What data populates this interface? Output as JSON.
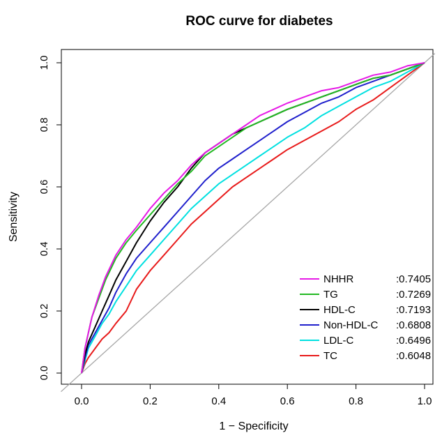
{
  "chart_data": {
    "type": "line",
    "title": "ROC curve for diabetes",
    "xlabel": "1 − Specificity",
    "ylabel": "Sensitivity",
    "xlim": [
      0,
      1
    ],
    "ylim": [
      0,
      1
    ],
    "x_ticks": [
      "0.0",
      "0.2",
      "0.4",
      "0.6",
      "0.8",
      "1.0"
    ],
    "y_ticks": [
      "0.0",
      "0.2",
      "0.4",
      "0.6",
      "0.8",
      "1.0"
    ],
    "grid": false,
    "legend_position": "bottom-right",
    "reference_line": {
      "from": [
        0,
        0
      ],
      "to": [
        1,
        1
      ],
      "color": "#a6a6a6"
    },
    "series": [
      {
        "name": "NHHR",
        "auc": ":0.7405",
        "color": "#e619e6",
        "points": [
          [
            0,
            0
          ],
          [
            0.01,
            0.08
          ],
          [
            0.02,
            0.13
          ],
          [
            0.03,
            0.18
          ],
          [
            0.05,
            0.25
          ],
          [
            0.07,
            0.31
          ],
          [
            0.1,
            0.38
          ],
          [
            0.13,
            0.43
          ],
          [
            0.16,
            0.47
          ],
          [
            0.2,
            0.53
          ],
          [
            0.24,
            0.58
          ],
          [
            0.28,
            0.62
          ],
          [
            0.32,
            0.67
          ],
          [
            0.36,
            0.71
          ],
          [
            0.4,
            0.74
          ],
          [
            0.44,
            0.77
          ],
          [
            0.48,
            0.8
          ],
          [
            0.52,
            0.83
          ],
          [
            0.56,
            0.85
          ],
          [
            0.6,
            0.87
          ],
          [
            0.65,
            0.89
          ],
          [
            0.7,
            0.91
          ],
          [
            0.75,
            0.92
          ],
          [
            0.8,
            0.94
          ],
          [
            0.85,
            0.96
          ],
          [
            0.9,
            0.97
          ],
          [
            0.95,
            0.99
          ],
          [
            1,
            1
          ]
        ]
      },
      {
        "name": "TG",
        "auc": ":0.7269",
        "color": "#22b822",
        "points": [
          [
            0,
            0
          ],
          [
            0.01,
            0.08
          ],
          [
            0.02,
            0.13
          ],
          [
            0.03,
            0.18
          ],
          [
            0.05,
            0.24
          ],
          [
            0.07,
            0.3
          ],
          [
            0.1,
            0.37
          ],
          [
            0.13,
            0.42
          ],
          [
            0.16,
            0.46
          ],
          [
            0.2,
            0.51
          ],
          [
            0.24,
            0.56
          ],
          [
            0.28,
            0.61
          ],
          [
            0.32,
            0.65
          ],
          [
            0.36,
            0.7
          ],
          [
            0.4,
            0.73
          ],
          [
            0.44,
            0.76
          ],
          [
            0.48,
            0.79
          ],
          [
            0.52,
            0.81
          ],
          [
            0.56,
            0.83
          ],
          [
            0.6,
            0.85
          ],
          [
            0.65,
            0.87
          ],
          [
            0.7,
            0.89
          ],
          [
            0.75,
            0.91
          ],
          [
            0.8,
            0.93
          ],
          [
            0.85,
            0.95
          ],
          [
            0.9,
            0.96
          ],
          [
            0.95,
            0.98
          ],
          [
            1,
            1
          ]
        ]
      },
      {
        "name": "HDL-C",
        "auc": ":0.7193",
        "color": "#000000",
        "points": [
          [
            0,
            0
          ],
          [
            0.01,
            0.06
          ],
          [
            0.02,
            0.1
          ],
          [
            0.04,
            0.15
          ],
          [
            0.06,
            0.2
          ],
          [
            0.08,
            0.25
          ],
          [
            0.1,
            0.3
          ],
          [
            0.13,
            0.36
          ],
          [
            0.16,
            0.42
          ],
          [
            0.2,
            0.49
          ],
          [
            0.24,
            0.55
          ],
          [
            0.28,
            0.6
          ],
          [
            0.32,
            0.66
          ],
          [
            0.36,
            0.71
          ],
          [
            0.4,
            0.74
          ],
          [
            0.44,
            0.77
          ],
          [
            0.48,
            0.79
          ],
          [
            0.52,
            0.81
          ],
          [
            0.56,
            0.83
          ],
          [
            0.6,
            0.85
          ],
          [
            0.65,
            0.87
          ],
          [
            0.7,
            0.89
          ],
          [
            0.75,
            0.91
          ],
          [
            0.8,
            0.93
          ],
          [
            0.85,
            0.95
          ],
          [
            0.9,
            0.96
          ],
          [
            0.95,
            0.98
          ],
          [
            1,
            1
          ]
        ]
      },
      {
        "name": "Non-HDL-C",
        "auc": ":0.6808",
        "color": "#1f1fcc",
        "points": [
          [
            0,
            0
          ],
          [
            0.01,
            0.05
          ],
          [
            0.02,
            0.09
          ],
          [
            0.04,
            0.13
          ],
          [
            0.06,
            0.17
          ],
          [
            0.08,
            0.21
          ],
          [
            0.1,
            0.26
          ],
          [
            0.13,
            0.32
          ],
          [
            0.16,
            0.37
          ],
          [
            0.2,
            0.42
          ],
          [
            0.24,
            0.47
          ],
          [
            0.28,
            0.52
          ],
          [
            0.32,
            0.57
          ],
          [
            0.36,
            0.62
          ],
          [
            0.4,
            0.66
          ],
          [
            0.44,
            0.69
          ],
          [
            0.48,
            0.72
          ],
          [
            0.52,
            0.75
          ],
          [
            0.56,
            0.78
          ],
          [
            0.6,
            0.81
          ],
          [
            0.65,
            0.84
          ],
          [
            0.7,
            0.87
          ],
          [
            0.75,
            0.89
          ],
          [
            0.8,
            0.92
          ],
          [
            0.85,
            0.94
          ],
          [
            0.9,
            0.96
          ],
          [
            0.95,
            0.98
          ],
          [
            1,
            1
          ]
        ]
      },
      {
        "name": "LDL-C",
        "auc": ":0.6496",
        "color": "#00e0e0",
        "points": [
          [
            0,
            0
          ],
          [
            0.01,
            0.04
          ],
          [
            0.02,
            0.08
          ],
          [
            0.04,
            0.12
          ],
          [
            0.06,
            0.16
          ],
          [
            0.08,
            0.19
          ],
          [
            0.1,
            0.23
          ],
          [
            0.13,
            0.28
          ],
          [
            0.16,
            0.33
          ],
          [
            0.2,
            0.38
          ],
          [
            0.24,
            0.43
          ],
          [
            0.28,
            0.48
          ],
          [
            0.32,
            0.53
          ],
          [
            0.36,
            0.57
          ],
          [
            0.4,
            0.61
          ],
          [
            0.44,
            0.64
          ],
          [
            0.48,
            0.67
          ],
          [
            0.52,
            0.7
          ],
          [
            0.56,
            0.73
          ],
          [
            0.6,
            0.76
          ],
          [
            0.65,
            0.79
          ],
          [
            0.7,
            0.83
          ],
          [
            0.75,
            0.86
          ],
          [
            0.8,
            0.89
          ],
          [
            0.85,
            0.92
          ],
          [
            0.9,
            0.94
          ],
          [
            0.95,
            0.97
          ],
          [
            1,
            1
          ]
        ]
      },
      {
        "name": "TC",
        "auc": ":0.6048",
        "color": "#e81a1a",
        "points": [
          [
            0,
            0
          ],
          [
            0.01,
            0.03
          ],
          [
            0.02,
            0.05
          ],
          [
            0.04,
            0.08
          ],
          [
            0.06,
            0.11
          ],
          [
            0.08,
            0.13
          ],
          [
            0.1,
            0.16
          ],
          [
            0.13,
            0.2
          ],
          [
            0.16,
            0.27
          ],
          [
            0.2,
            0.33
          ],
          [
            0.24,
            0.38
          ],
          [
            0.28,
            0.43
          ],
          [
            0.32,
            0.48
          ],
          [
            0.36,
            0.52
          ],
          [
            0.4,
            0.56
          ],
          [
            0.44,
            0.6
          ],
          [
            0.48,
            0.63
          ],
          [
            0.52,
            0.66
          ],
          [
            0.56,
            0.69
          ],
          [
            0.6,
            0.72
          ],
          [
            0.65,
            0.75
          ],
          [
            0.7,
            0.78
          ],
          [
            0.75,
            0.81
          ],
          [
            0.8,
            0.85
          ],
          [
            0.85,
            0.88
          ],
          [
            0.9,
            0.92
          ],
          [
            0.95,
            0.96
          ],
          [
            1,
            1
          ]
        ]
      }
    ]
  }
}
